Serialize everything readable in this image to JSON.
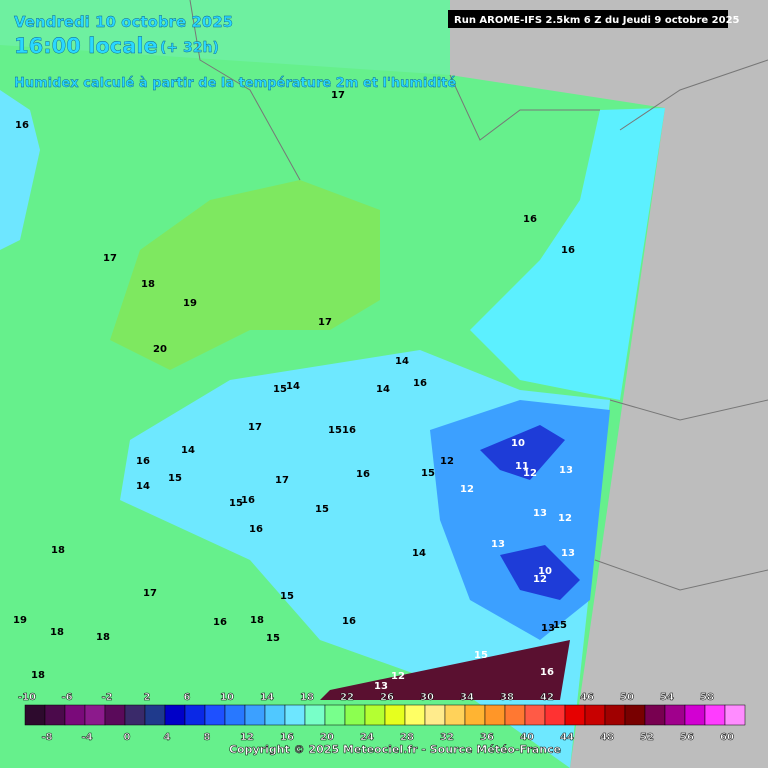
{
  "header": {
    "date": "Vendredi 10 octobre 2025",
    "time": "16:00 locale",
    "lead": "(+ 32h)",
    "subtitle": "Humidex calculé à partir de la température 2m et l'humidité",
    "run": "Run AROME-IFS 2.5km 6 Z du Jeudi 9 octobre 2025"
  },
  "map": {
    "labels": [
      17,
      16,
      16,
      16,
      17,
      18,
      19,
      17,
      20,
      14,
      14,
      16,
      15,
      14,
      17,
      15,
      16,
      14,
      16,
      10,
      12,
      15,
      11,
      12,
      13,
      14,
      15,
      17,
      16,
      12,
      15,
      16,
      16,
      15,
      13,
      12,
      13,
      18,
      14,
      13,
      10,
      12,
      17,
      19,
      18,
      18,
      16,
      18,
      15,
      16,
      15,
      13,
      15,
      18,
      13,
      12,
      15,
      16
    ],
    "scale": {
      "labels": [
        -10,
        -8,
        -6,
        -4,
        -2,
        0,
        2,
        4,
        6,
        8,
        10,
        12,
        14,
        16,
        18,
        20,
        22,
        24,
        26,
        28,
        30,
        32,
        34,
        36,
        38,
        40,
        42,
        44,
        46,
        48,
        50,
        52,
        54,
        56,
        58,
        60
      ],
      "colors": [
        "#2d0a2d",
        "#4b0a4b",
        "#7a0a7a",
        "#8c1a8c",
        "#5a0a5a",
        "#3a2a6a",
        "#1f3a8c",
        "#0000c8",
        "#0a28e6",
        "#1e50ff",
        "#2878ff",
        "#3ca0ff",
        "#50c8ff",
        "#6ee6ff",
        "#78ffc8",
        "#78ff8c",
        "#8cff50",
        "#b4ff32",
        "#e6ff1e",
        "#ffff64",
        "#ffeb8c",
        "#ffd25a",
        "#ffb432",
        "#ff9628",
        "#ff7832",
        "#ff5a46",
        "#ff3232",
        "#e60000",
        "#c80000",
        "#a00000",
        "#780000",
        "#780050",
        "#a0008c",
        "#d200d2",
        "#ff3cff",
        "#ff8cff"
      ]
    }
  },
  "footer": {
    "copyright": "Copyright © 2025 Meteociel.fr - Source Météo-France"
  }
}
